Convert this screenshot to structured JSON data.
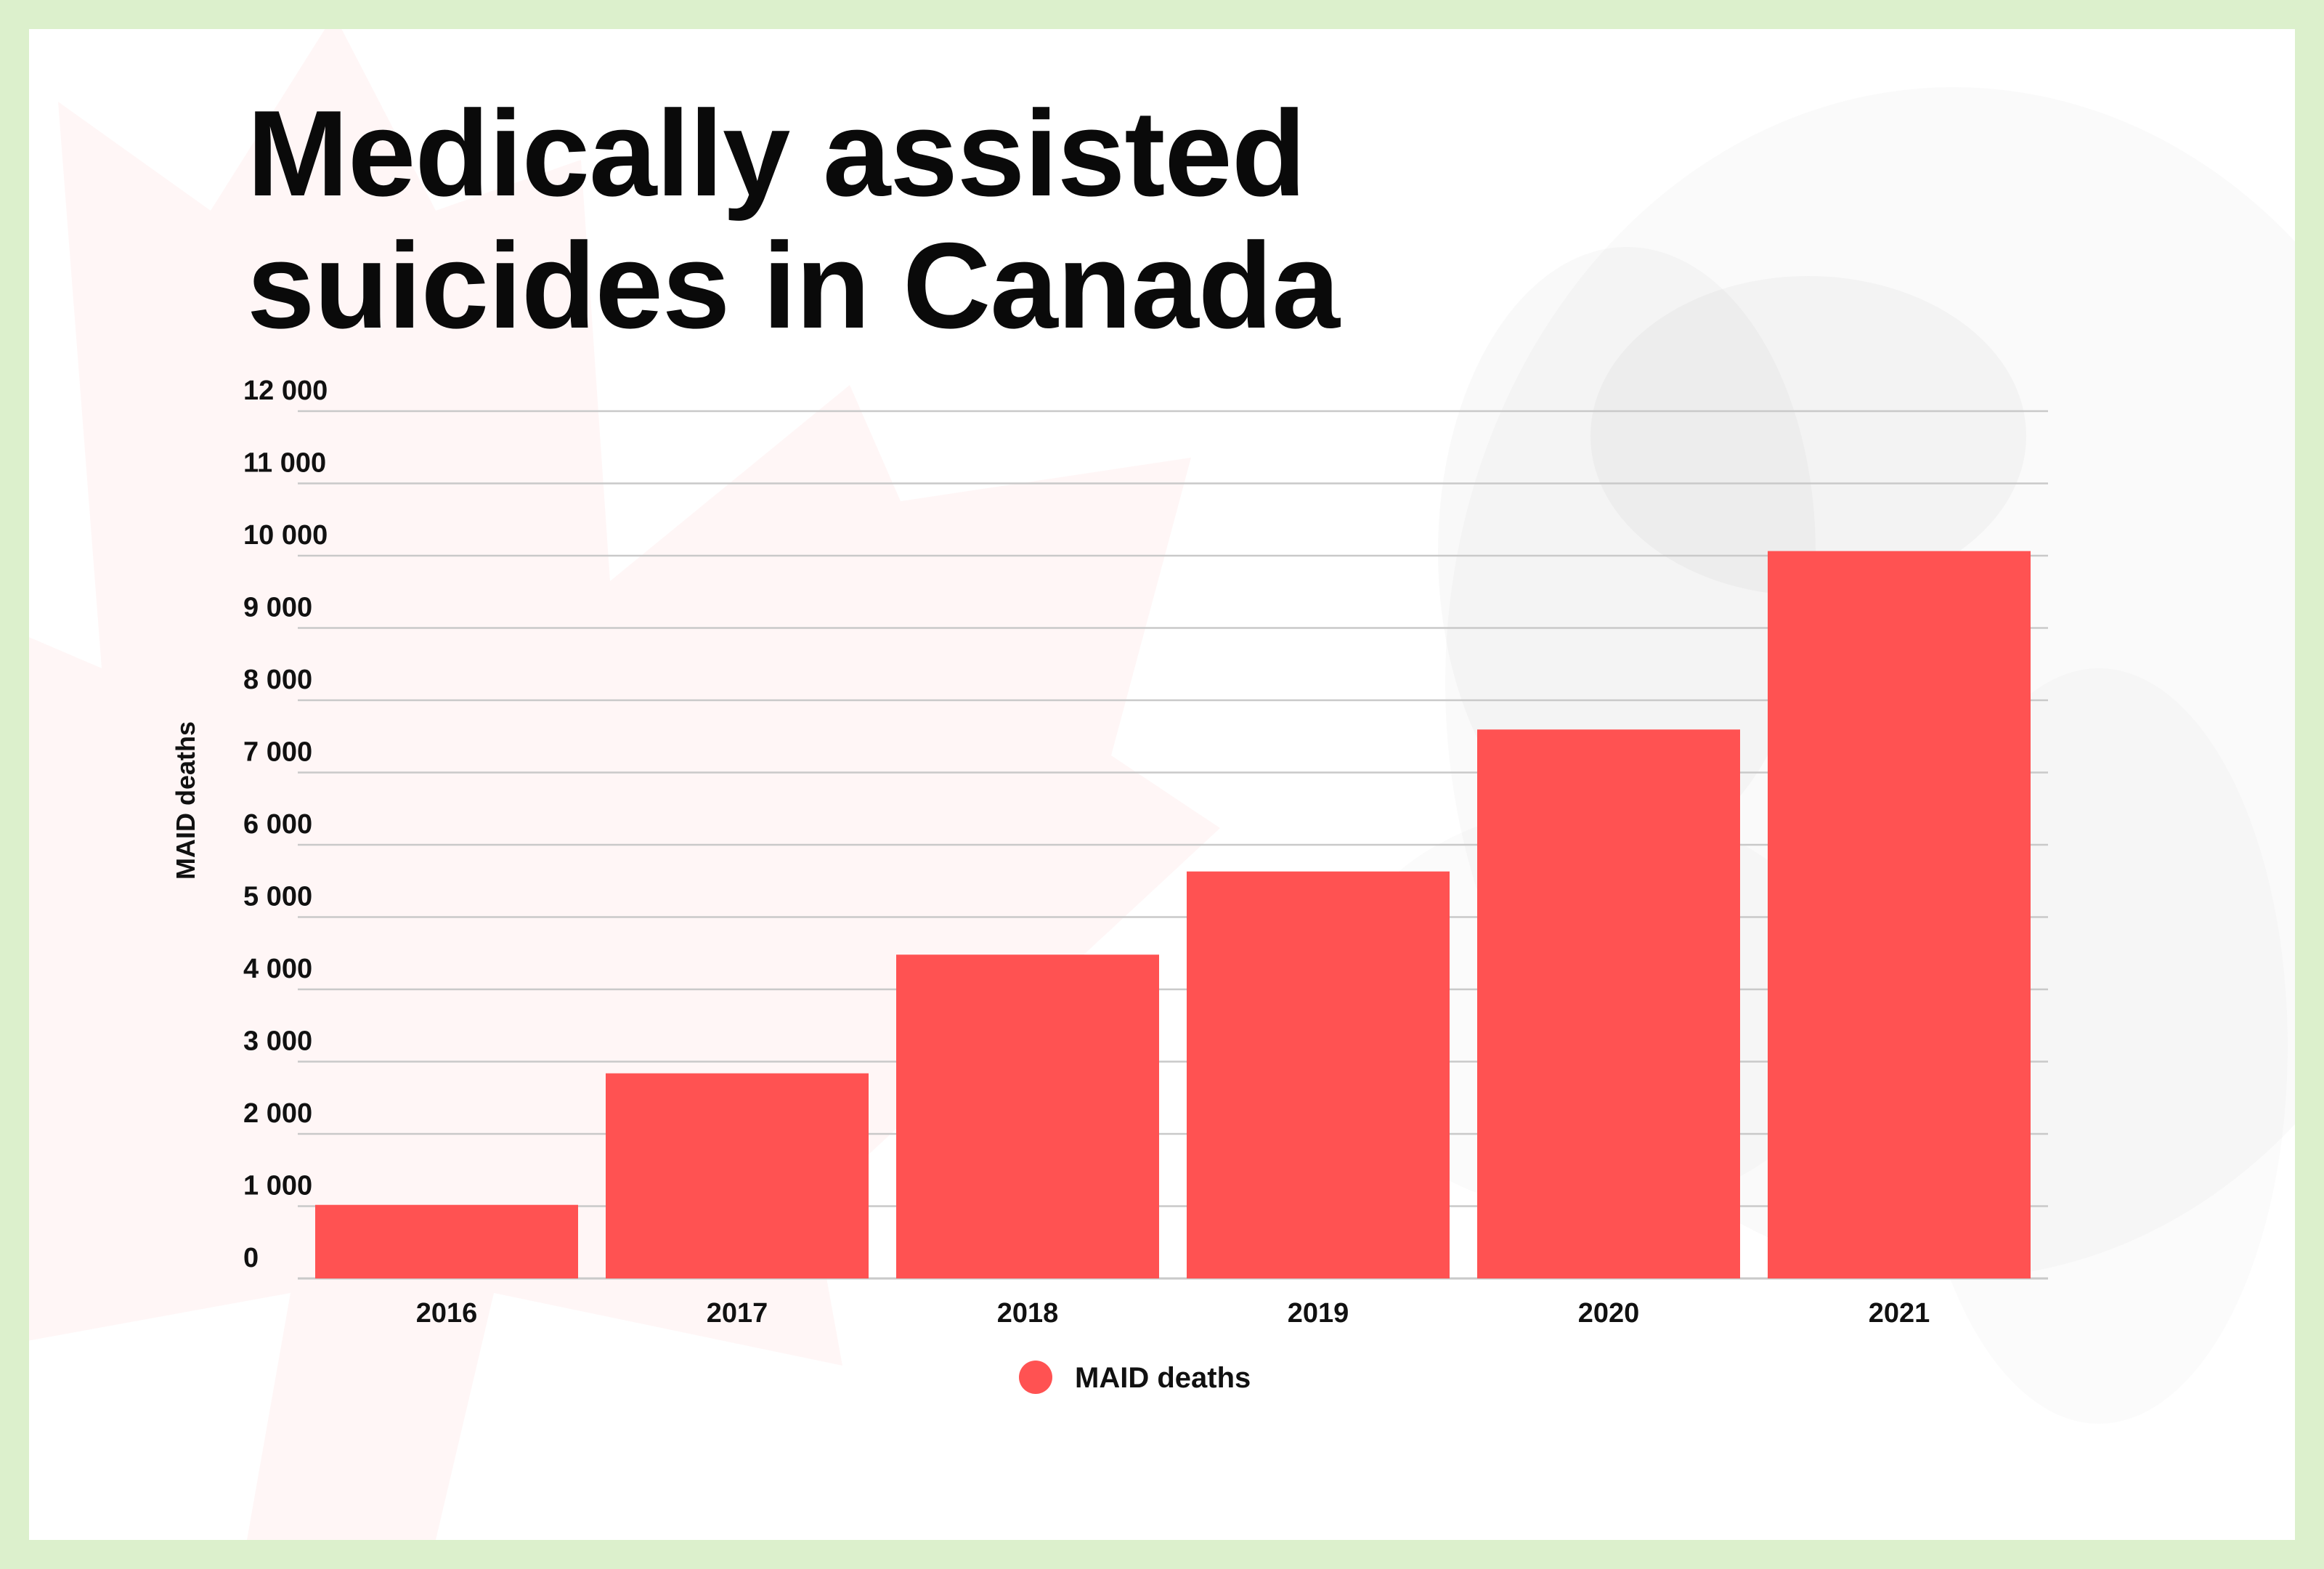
{
  "title_lines": [
    "Medically assisted",
    "suicides in Canada"
  ],
  "colors": {
    "bar": "#ff5252",
    "grid": "#c9c9c9",
    "page_border": "#dcf0cc",
    "card": "#ffffff",
    "text": "#0a0a0a"
  },
  "chart_data": {
    "type": "bar",
    "title": "Medically assisted suicides in Canada",
    "xlabel": "",
    "ylabel": "MAID deaths",
    "categories": [
      "2016",
      "2017",
      "2018",
      "2019",
      "2020",
      "2021"
    ],
    "series": [
      {
        "name": "MAID deaths",
        "values": [
          1018,
          2838,
          4480,
          5631,
          7595,
          10064
        ]
      }
    ],
    "ylim": [
      0,
      12000
    ],
    "yticks": [
      0,
      1000,
      2000,
      3000,
      4000,
      5000,
      6000,
      7000,
      8000,
      9000,
      10000,
      11000,
      12000
    ],
    "ytick_labels": [
      "0",
      "1 000",
      "2 000",
      "3 000",
      "4 000",
      "5 000",
      "6 000",
      "7 000",
      "8 000",
      "9 000",
      "10 000",
      "11 000",
      "12 000"
    ],
    "grid": true,
    "legend": "bottom-center"
  }
}
